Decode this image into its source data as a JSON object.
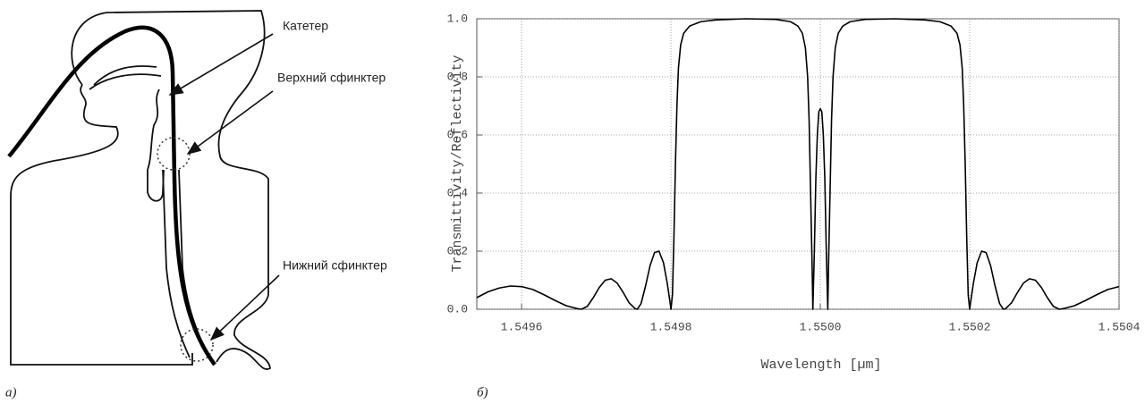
{
  "diagram": {
    "labels": [
      "Катетер",
      "Верхний сфинктер",
      "Нижний сфинктер"
    ],
    "caption": "а)"
  },
  "chart_data": {
    "type": "line",
    "caption": "б)",
    "xlabel": "Wavelength [µm]",
    "ylabel": "Transmittivity/Reflectivity",
    "xlim": [
      1.54954,
      1.5504
    ],
    "ylim": [
      0,
      1
    ],
    "xticks": [
      1.5496,
      1.5498,
      {
        "value": 1.55,
        "label": "1.5500"
      },
      1.5502,
      1.5504
    ],
    "yticks": [
      {
        "value": 0,
        "label": "0.0"
      },
      0.2,
      0.4,
      0.6,
      0.8,
      {
        "value": 1,
        "label": "1.0"
      }
    ],
    "grid": true,
    "color": "#000000",
    "x": [
      1.54954,
      1.549555,
      1.54957,
      1.549585,
      1.5496,
      1.549615,
      1.54963,
      1.549645,
      1.54966,
      1.549675,
      1.54968,
      1.549688,
      1.549696,
      1.549704,
      1.549712,
      1.54972,
      1.549728,
      1.549736,
      1.549744,
      1.549752,
      1.549755,
      1.54976,
      1.549766,
      1.549772,
      1.549778,
      1.549784,
      1.54979,
      1.549795,
      1.549799,
      1.5498,
      1.549802,
      1.549804,
      1.549806,
      1.549808,
      1.54981,
      1.549813,
      1.549817,
      1.549825,
      1.54984,
      1.54986,
      1.5499,
      1.54994,
      1.54996,
      1.54997,
      1.549976,
      1.54998,
      1.549983,
      1.549985,
      1.549987,
      1.549989,
      1.54999,
      1.549992,
      1.549994,
      1.549996,
      1.549998,
      1.55,
      1.550002,
      1.550004,
      1.550006,
      1.550008,
      1.55001,
      1.550011,
      1.550013,
      1.550015,
      1.550017,
      1.55002,
      1.550024,
      1.55003,
      1.55004,
      1.55006,
      1.5501,
      1.55014,
      1.55016,
      1.550175,
      1.550183,
      1.550187,
      1.55019,
      1.550192,
      1.550194,
      1.550196,
      1.550198,
      1.5502,
      1.550201,
      1.550205,
      1.55021,
      1.550216,
      1.550222,
      1.550228,
      1.550234,
      1.55024,
      1.550245,
      1.550248,
      1.550256,
      1.550264,
      1.550272,
      1.55028,
      1.550288,
      1.550296,
      1.550304,
      1.550312,
      1.55032,
      1.550325,
      1.55034,
      1.550355,
      1.55037,
      1.550385,
      1.5504
    ],
    "values": [
      0.04,
      0.06,
      0.073,
      0.08,
      0.078,
      0.068,
      0.05,
      0.03,
      0.012,
      0.002,
      0,
      0.01,
      0.04,
      0.075,
      0.1,
      0.105,
      0.09,
      0.058,
      0.022,
      0.002,
      0,
      0.02,
      0.08,
      0.15,
      0.195,
      0.2,
      0.16,
      0.09,
      0.02,
      0,
      0.05,
      0.25,
      0.5,
      0.7,
      0.83,
      0.91,
      0.95,
      0.975,
      0.99,
      0.996,
      1,
      0.998,
      0.99,
      0.975,
      0.95,
      0.9,
      0.8,
      0.65,
      0.4,
      0.15,
      0,
      0.2,
      0.45,
      0.6,
      0.68,
      0.69,
      0.68,
      0.6,
      0.45,
      0.2,
      0,
      0.15,
      0.4,
      0.65,
      0.8,
      0.9,
      0.95,
      0.975,
      0.99,
      0.998,
      1,
      0.996,
      0.99,
      0.975,
      0.95,
      0.91,
      0.83,
      0.7,
      0.5,
      0.25,
      0.05,
      0,
      0.02,
      0.09,
      0.16,
      0.2,
      0.195,
      0.15,
      0.08,
      0.02,
      0,
      0.002,
      0.022,
      0.058,
      0.09,
      0.105,
      0.1,
      0.075,
      0.04,
      0.01,
      0,
      0.002,
      0.012,
      0.03,
      0.05,
      0.068,
      0.078
    ]
  }
}
